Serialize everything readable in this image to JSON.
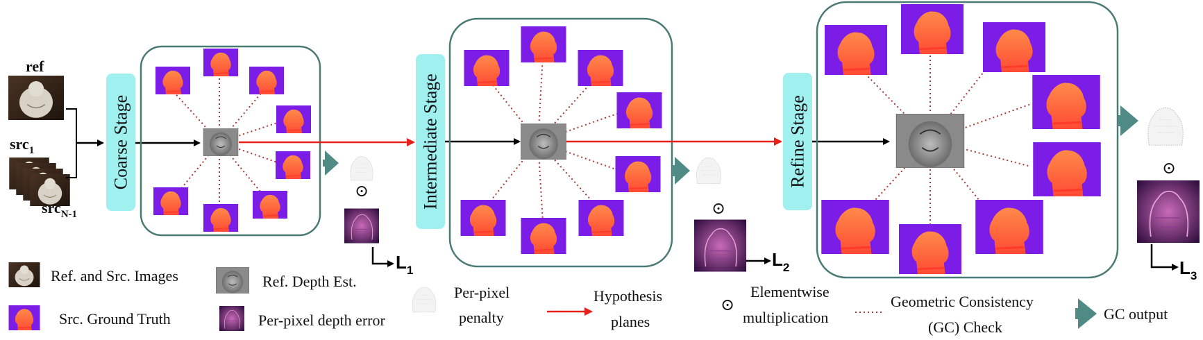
{
  "inputs": {
    "ref_label": "ref",
    "src1_label": "src",
    "src1_sub": "1",
    "srcN_label": "src",
    "srcN_sub": "N-1"
  },
  "stages": {
    "coarse": "Coarse Stage",
    "intermediate": "Intermediate Stage",
    "refine": "Refine Stage"
  },
  "symbols": {
    "elementwise": "⊙"
  },
  "losses": {
    "l1": "L",
    "l1_sub": "1",
    "l2": "L",
    "l2_sub": "2",
    "l3": "L",
    "l3_sub": "3"
  },
  "legend": {
    "ref_src_images": "Ref. and Src. Images",
    "ref_depth_est": "Ref. Depth Est.",
    "src_ground_truth": "Src. Ground Truth",
    "per_pixel_depth_error": "Per-pixel depth error",
    "per_pixel_penalty_line1": "Per-pixel",
    "per_pixel_penalty_line2": "penalty",
    "hypothesis_line1": "Hypothesis",
    "hypothesis_line2": "planes",
    "elementwise_line1": "Elementwise",
    "elementwise_line2": "multiplication",
    "gc_check_line1": "Geometric Consistency",
    "gc_check_line2": "(GC) Check",
    "gc_output": "GC output"
  },
  "colors": {
    "stage_box": "#9ff0ef",
    "panel_border": "#4a7a74",
    "hypothesis_arrow": "#e8201c",
    "gc_dots": "#a33a33",
    "gc_arrow": "#4f8a85",
    "depth_bg": "#7b1de6",
    "depth_fg": "#ff5a36"
  }
}
